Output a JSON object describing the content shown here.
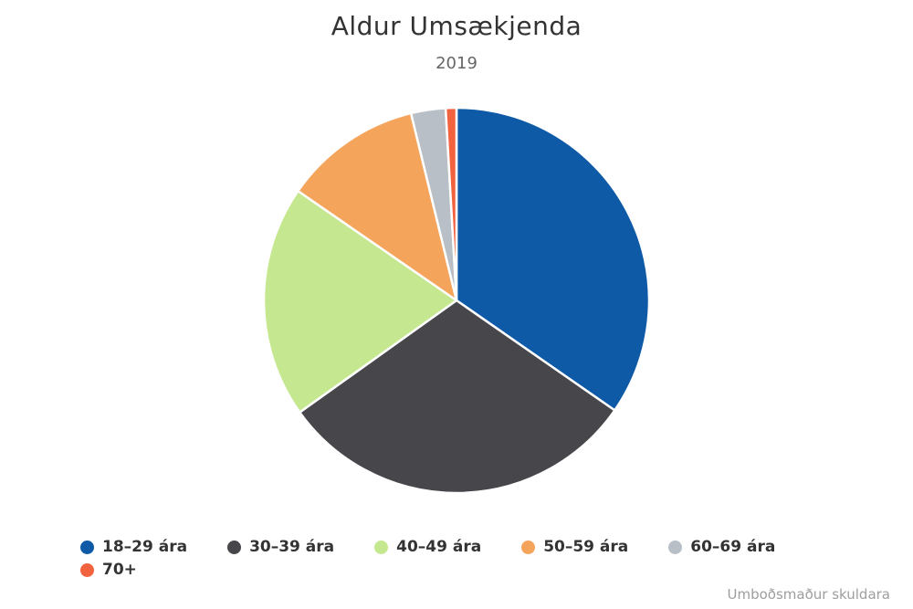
{
  "chart_data": {
    "type": "pie",
    "title": "Aldur Umsækjenda",
    "subtitle": "2019",
    "unit": "percent",
    "start_angle_deg": 0,
    "direction": "clockwise",
    "legend_position": "bottom",
    "background_color": "#ffffff",
    "slice_border_color": "#ffffff",
    "slices": [
      {
        "label": "18–29 ára",
        "value": 34.7,
        "color": "#0e5aa7"
      },
      {
        "label": "30–39 ára",
        "value": 30.5,
        "color": "#46464b"
      },
      {
        "label": "40–49 ára",
        "value": 19.5,
        "color": "#c5e78f"
      },
      {
        "label": "50–59 ára",
        "value": 11.6,
        "color": "#f5a45c"
      },
      {
        "label": "60–69 ára",
        "value": 2.9,
        "color": "#b8bfc6"
      },
      {
        "label": "70+",
        "value": 0.9,
        "color": "#f3623f"
      }
    ]
  },
  "credit": {
    "label": "Umboðsmaður skuldara"
  }
}
